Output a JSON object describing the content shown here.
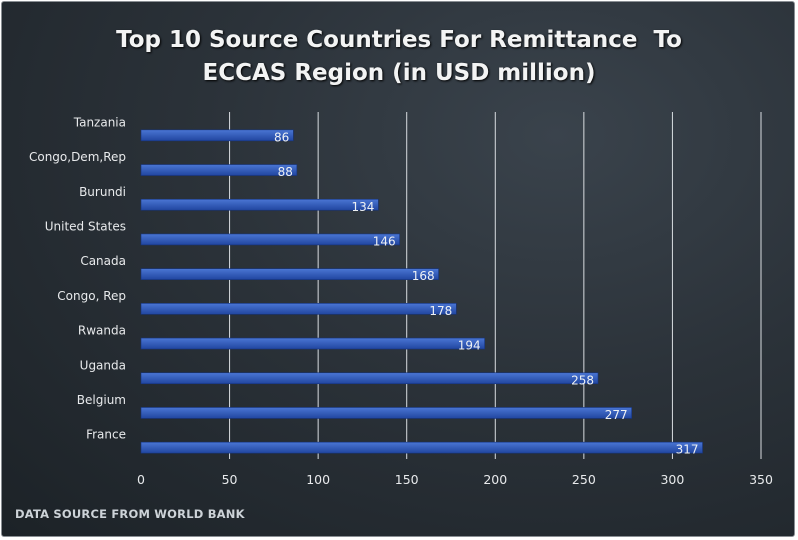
{
  "chart_data": {
    "type": "bar",
    "orientation": "horizontal",
    "title_lines": [
      "Top 10 Source Countries For Remittance  To",
      "ECCAS Region (in USD million)"
    ],
    "categories": [
      "Tanzania",
      "Congo,Dem,Rep",
      "Burundi",
      "United States",
      "Canada",
      "Congo, Rep",
      "Rwanda",
      "Uganda",
      "Belgium",
      "France"
    ],
    "values": [
      86,
      88,
      134,
      146,
      168,
      178,
      194,
      258,
      277,
      317
    ],
    "xlim": [
      0,
      350
    ],
    "x_ticks": [
      "0",
      "50",
      "100",
      "150",
      "200",
      "250",
      "300",
      "350"
    ],
    "xlabel": "",
    "ylabel": "",
    "grid": "vertical",
    "legend": "none",
    "data_labels": true
  },
  "footer": {
    "source": "DATA SOURCE FROM WORLD BANK"
  },
  "colors": {
    "bar": "#2b56b5",
    "bar_highlight": "#4a76d4",
    "gridline": "#d9dde1",
    "text": "#e8eaec",
    "background": "#2b3239"
  }
}
